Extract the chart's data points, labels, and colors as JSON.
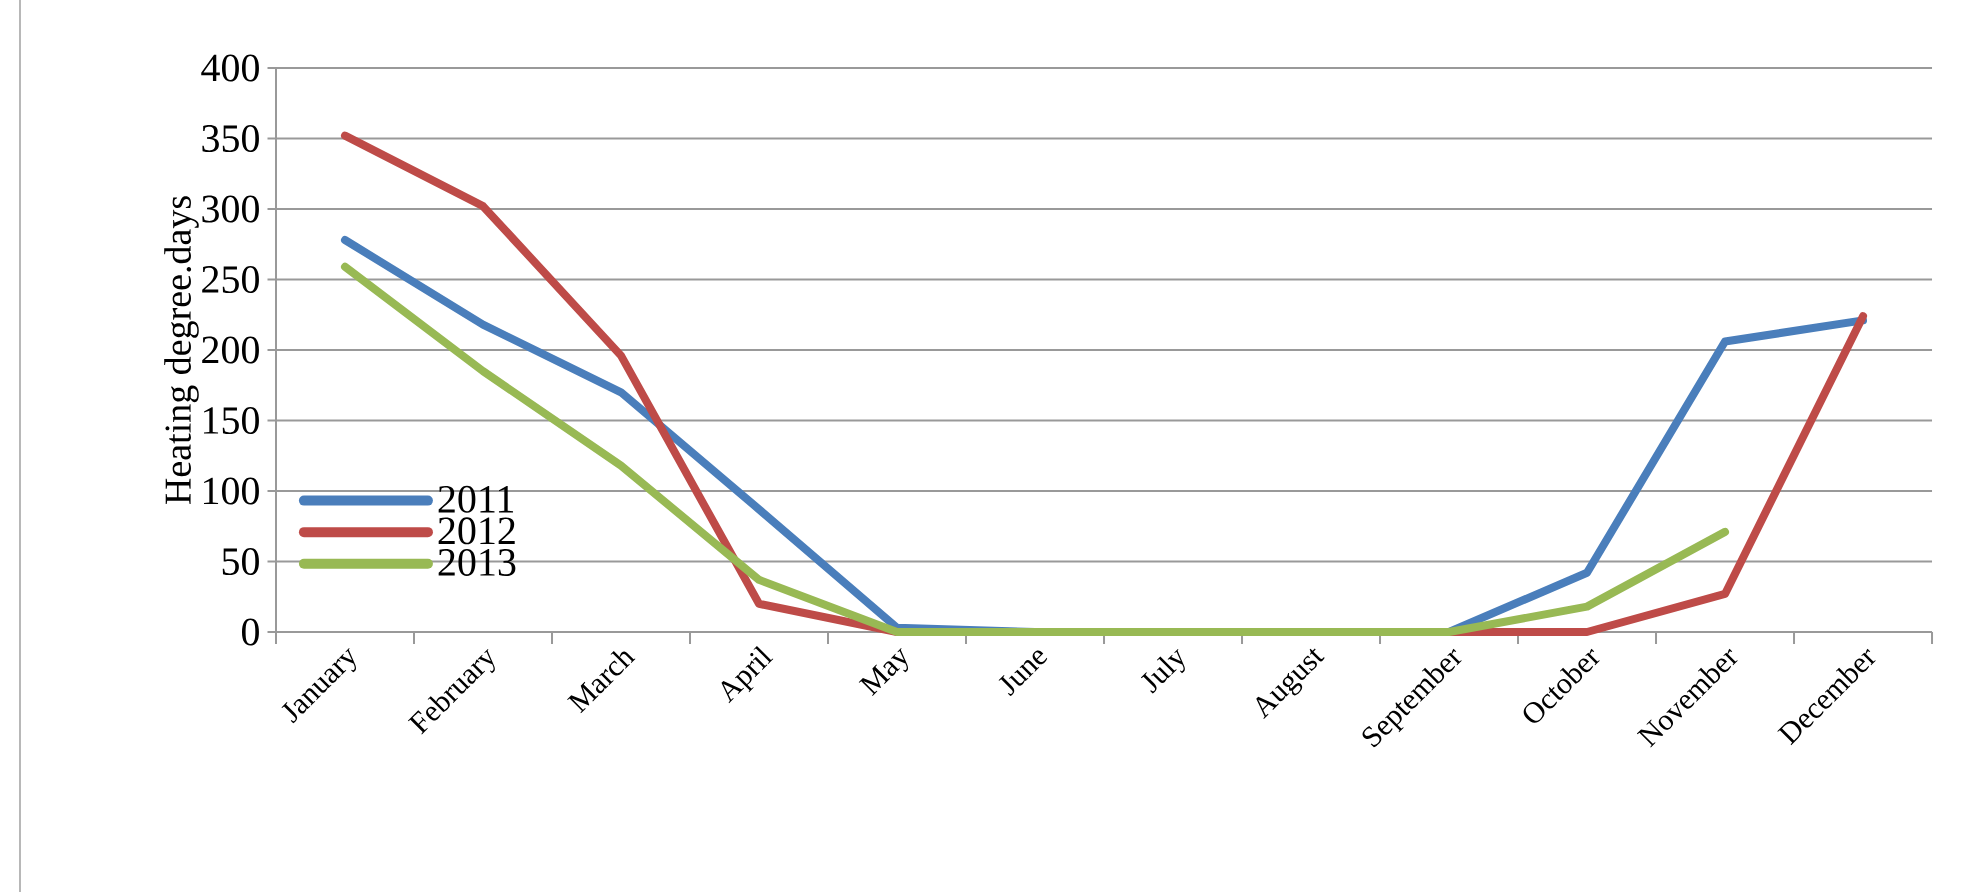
{
  "chart_data": {
    "type": "line",
    "ylabel": "Heating degree.days",
    "categories": [
      "January",
      "February",
      "March",
      "April",
      "May",
      "June",
      "July",
      "August",
      "September",
      "October",
      "November",
      "December"
    ],
    "series": [
      {
        "name": "2011",
        "color": "#4a7ebb",
        "values": [
          278,
          218,
          170,
          87,
          3,
          0,
          0,
          0,
          0,
          42,
          206,
          221
        ]
      },
      {
        "name": "2012",
        "color": "#be4b48",
        "values": [
          352,
          302,
          196,
          20,
          0,
          0,
          0,
          0,
          0,
          0,
          27,
          224
        ]
      },
      {
        "name": "2013",
        "color": "#98b954",
        "values": [
          259,
          185,
          118,
          37,
          0,
          0,
          0,
          0,
          0,
          18,
          71,
          null
        ]
      }
    ],
    "ylim": [
      0,
      400
    ],
    "yticks": [
      0,
      50,
      100,
      150,
      200,
      250,
      300,
      350,
      400
    ],
    "grid": "y",
    "legend": "left",
    "marker": "none",
    "line_style": "solid"
  }
}
